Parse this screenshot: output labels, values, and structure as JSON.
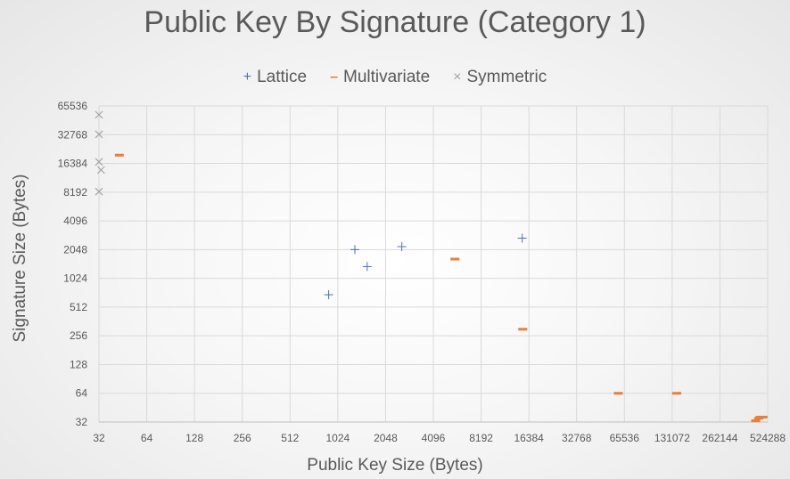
{
  "chart_data": {
    "type": "scatter",
    "title": "Public Key By Signature (Category 1)",
    "xlabel": "Public Key Size (Bytes)",
    "ylabel": "Signature Size (Bytes)",
    "x_scale": "log2",
    "y_scale": "log2",
    "xlim": [
      32,
      524288
    ],
    "ylim": [
      32,
      65536
    ],
    "x_ticks": [
      "32",
      "64",
      "128",
      "256",
      "512",
      "1024",
      "2048",
      "4096",
      "8192",
      "16384",
      "32768",
      "65536",
      "131072",
      "262144",
      "524288"
    ],
    "y_ticks": [
      "32",
      "64",
      "128",
      "256",
      "512",
      "1024",
      "2048",
      "4096",
      "8192",
      "16384",
      "32768",
      "65536"
    ],
    "grid": true,
    "legend_position": "top",
    "series": [
      {
        "name": "Lattice",
        "marker": "plus",
        "color": "#4472c4",
        "points": [
          [
            897,
            690
          ],
          [
            1312,
            2050
          ],
          [
            1568,
            1360
          ],
          [
            2592,
            2200
          ],
          [
            14880,
            2700
          ]
        ]
      },
      {
        "name": "Multivariate",
        "marker": "dash",
        "color": "#ed7d31",
        "points": [
          [
            43,
            20000
          ],
          [
            5600,
            1630
          ],
          [
            15000,
            300
          ],
          [
            60000,
            64
          ],
          [
            140000,
            64
          ],
          [
            440000,
            33
          ],
          [
            460000,
            35
          ],
          [
            470000,
            36
          ],
          [
            490000,
            36
          ]
        ]
      },
      {
        "name": "Symmetric",
        "marker": "cross",
        "color": "#a5a5a5",
        "points": [
          [
            32,
            53000
          ],
          [
            32,
            33000
          ],
          [
            32,
            17000
          ],
          [
            33,
            14000
          ],
          [
            32,
            8300
          ]
        ]
      }
    ]
  }
}
